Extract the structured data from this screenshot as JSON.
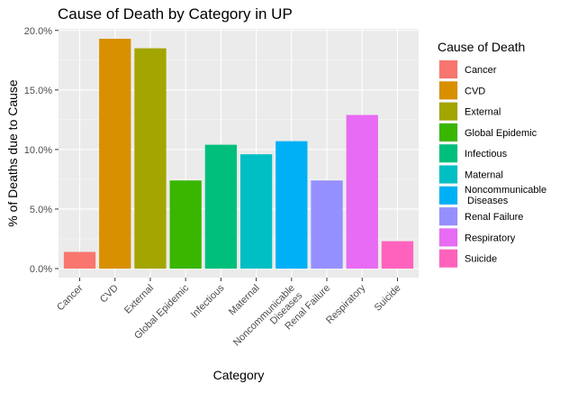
{
  "chart_data": {
    "type": "bar",
    "title": "Cause of Death by Category in UP",
    "xlabel": "Category",
    "ylabel": "% of Deaths due to Cause",
    "ylim": [
      0,
      20
    ],
    "yticks": [
      "0.0%",
      "5.0%",
      "10.0%",
      "15.0%",
      "20.0%"
    ],
    "ytick_values": [
      0,
      5,
      10,
      15,
      20
    ],
    "grid": true,
    "legend_position": "right",
    "legend_title": "Cause of Death",
    "categories": [
      "Cancer",
      "CVD",
      "External",
      "Global Epidemic",
      "Infectious",
      "Maternal",
      "Noncommunicable\nDiseases",
      "Renal Failure",
      "Respiratory",
      "Suicide"
    ],
    "values": [
      1.4,
      19.3,
      18.5,
      7.4,
      10.4,
      9.6,
      10.7,
      7.4,
      12.9,
      2.3
    ],
    "colors": [
      "#F8766D",
      "#D89000",
      "#A3A500",
      "#39B600",
      "#00BF7D",
      "#00BFC4",
      "#00B0F6",
      "#9590FF",
      "#E76BF3",
      "#FF62BC"
    ],
    "legend_labels": [
      "Cancer",
      "CVD",
      "External",
      "Global Epidemic",
      "Infectious",
      "Maternal",
      "Noncommunicable\n Diseases",
      "Renal Failure",
      "Respiratory",
      "Suicide"
    ]
  }
}
